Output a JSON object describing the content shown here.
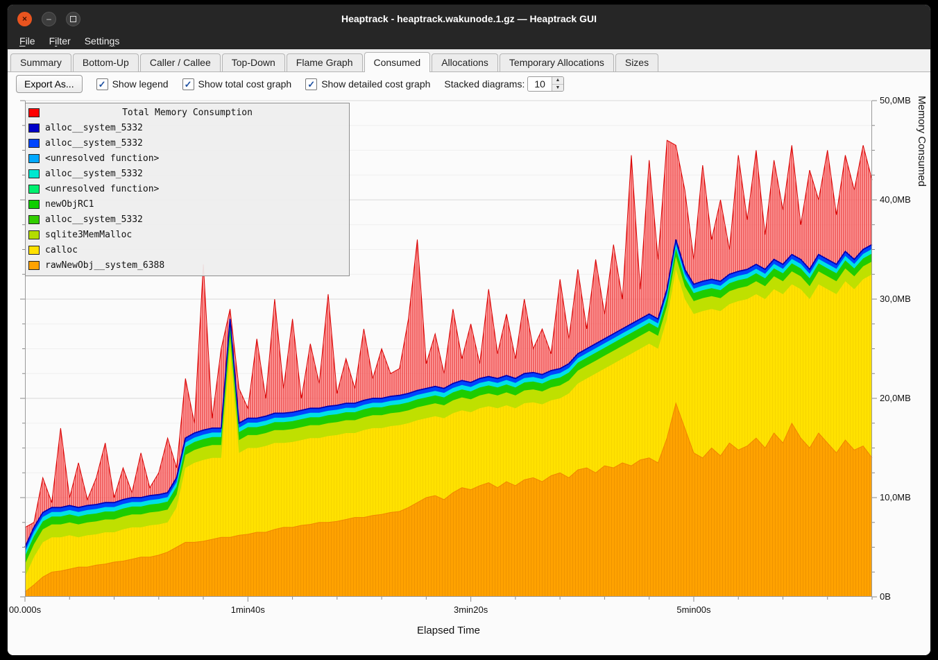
{
  "window": {
    "title": "Heaptrack - heaptrack.wakunode.1.gz — Heaptrack GUI",
    "controls": {
      "close": "×",
      "minimize": "–",
      "maximize": "□"
    }
  },
  "menubar": {
    "items": [
      {
        "label": "File",
        "mnemonic": 0
      },
      {
        "label": "Filter",
        "mnemonic": 1
      },
      {
        "label": "Settings",
        "mnemonic": 6
      }
    ]
  },
  "tabs": {
    "items": [
      "Summary",
      "Bottom-Up",
      "Caller / Callee",
      "Top-Down",
      "Flame Graph",
      "Consumed",
      "Allocations",
      "Temporary Allocations",
      "Sizes"
    ],
    "active": "Consumed"
  },
  "toolbar": {
    "export_label": "Export As...",
    "checkboxes": [
      {
        "label": "Show legend",
        "checked": true
      },
      {
        "label": "Show total cost graph",
        "checked": true
      },
      {
        "label": "Show detailed cost graph",
        "checked": true
      }
    ],
    "stacked_label": "Stacked diagrams:",
    "stacked_value": "10"
  },
  "chart_data": {
    "type": "area",
    "title": "Total Memory Consumption",
    "xlabel": "Elapsed Time",
    "ylabel": "Memory Consumed",
    "units": "MB",
    "ylim": [
      0,
      50
    ],
    "x_max": 380,
    "x_step_seconds": 4,
    "yticks": [
      {
        "label": "0B",
        "value": 0
      },
      {
        "label": "10,0MB",
        "value": 10
      },
      {
        "label": "20,0MB",
        "value": 20
      },
      {
        "label": "30,0MB",
        "value": 30
      },
      {
        "label": "40,0MB",
        "value": 40
      },
      {
        "label": "50,0MB",
        "value": 50
      }
    ],
    "xticks": [
      {
        "label": "00.000s",
        "value": 0
      },
      {
        "label": "1min40s",
        "value": 100
      },
      {
        "label": "3min20s",
        "value": 200
      },
      {
        "label": "5min00s",
        "value": 300
      }
    ],
    "legend": {
      "title": "Total Memory Consumption",
      "title_color": "#ff0000",
      "entries": [
        {
          "label": "alloc__system_5332",
          "color": "#0000c8"
        },
        {
          "label": "alloc__system_5332",
          "color": "#0045ff"
        },
        {
          "label": "<unresolved function>",
          "color": "#00a8ff"
        },
        {
          "label": "alloc__system_5332",
          "color": "#00e8d0"
        },
        {
          "label": "<unresolved function>",
          "color": "#00f070"
        },
        {
          "label": "newObjRC1",
          "color": "#0fce00"
        },
        {
          "label": "alloc__system_5332",
          "color": "#32cd00"
        },
        {
          "label": "sqlite3MemMalloc",
          "color": "#b4dc00"
        },
        {
          "label": "calloc",
          "color": "#ffe100"
        },
        {
          "label": "rawNewObj__system_6388",
          "color": "#ffa200"
        }
      ]
    },
    "colors": {
      "red_line": "#d80000",
      "red_fill": "#ff8a8a",
      "red_stripe": "#e62020",
      "blue": "#0045ff",
      "blue_dark": "#0000b4",
      "cyan": "#00e0e6",
      "green": "#1ecc00",
      "lgreen": "#bfe000",
      "yellow": "#ffe100",
      "orange": "#ffa200",
      "orange_line": "#f08600",
      "orange_stripe": "#ef9400"
    },
    "band_thickness_mb": {
      "sqlite3_band": 1.3,
      "green_band": 0.8,
      "cyan_band": 0.45,
      "blue_band": 0.45
    },
    "layers_cumulative_mb": {
      "orange_top": [
        0.5,
        1.2,
        2.0,
        2.5,
        2.6,
        2.8,
        3.0,
        3.0,
        3.2,
        3.3,
        3.5,
        3.6,
        3.8,
        4.0,
        4.0,
        4.2,
        4.5,
        5.0,
        5.5,
        5.5,
        5.6,
        5.8,
        6.0,
        6.0,
        6.2,
        6.3,
        6.5,
        6.5,
        6.8,
        7.0,
        7.0,
        7.2,
        7.3,
        7.5,
        7.5,
        7.6,
        7.8,
        8.0,
        8.0,
        8.2,
        8.3,
        8.5,
        8.6,
        9.0,
        9.5,
        10.0,
        10.2,
        9.8,
        10.5,
        11.0,
        10.8,
        11.2,
        11.5,
        11.0,
        11.6,
        11.2,
        11.8,
        12.0,
        11.6,
        12.2,
        12.5,
        12.0,
        12.8,
        13.0,
        12.5,
        13.2,
        13.0,
        13.5,
        13.2,
        13.8,
        14.0,
        13.5,
        16.0,
        19.5,
        17.0,
        14.5,
        14.0,
        15.0,
        14.2,
        15.5,
        14.8,
        15.2,
        16.0,
        15.0,
        16.5,
        15.5,
        17.5,
        16.0,
        15.0,
        16.5,
        15.5,
        14.5,
        15.8,
        14.8,
        15.2,
        14.0
      ],
      "yellow_top": [
        2.0,
        4.0,
        5.5,
        6.0,
        6.0,
        6.2,
        6.0,
        6.2,
        6.3,
        6.5,
        6.5,
        6.8,
        7.0,
        7.0,
        7.2,
        7.3,
        7.5,
        9.0,
        13.0,
        13.5,
        13.8,
        14.0,
        14.0,
        25.0,
        14.5,
        15.0,
        15.0,
        15.2,
        15.5,
        15.5,
        15.6,
        15.8,
        16.0,
        16.0,
        16.2,
        16.3,
        16.5,
        16.5,
        16.8,
        17.0,
        17.0,
        17.2,
        17.3,
        17.5,
        17.8,
        18.0,
        18.2,
        18.0,
        18.5,
        18.8,
        18.6,
        19.0,
        19.2,
        19.0,
        19.3,
        19.0,
        19.5,
        19.6,
        19.4,
        19.8,
        20.0,
        20.5,
        21.5,
        22.0,
        22.5,
        23.0,
        23.5,
        24.0,
        24.5,
        25.0,
        25.5,
        25.0,
        28.0,
        33.0,
        30.0,
        28.5,
        28.8,
        29.0,
        28.8,
        29.5,
        29.8,
        30.0,
        30.5,
        30.0,
        31.0,
        30.5,
        31.5,
        31.0,
        30.0,
        31.5,
        31.0,
        30.5,
        31.8,
        31.0,
        32.0,
        32.5
      ],
      "total": [
        7.0,
        7.5,
        12.0,
        9.5,
        17.0,
        10.0,
        13.5,
        9.8,
        12.0,
        15.5,
        10.0,
        13.0,
        10.5,
        14.5,
        11.0,
        12.5,
        16.0,
        13.0,
        22.0,
        17.5,
        33.5,
        18.0,
        25.0,
        29.0,
        21.0,
        19.0,
        26.0,
        20.0,
        30.0,
        21.0,
        28.0,
        20.0,
        25.5,
        21.5,
        30.5,
        20.5,
        24.0,
        21.0,
        27.0,
        22.0,
        25.0,
        22.5,
        23.0,
        28.0,
        36.0,
        23.5,
        26.5,
        22.5,
        29.0,
        24.0,
        27.5,
        23.5,
        31.0,
        24.5,
        28.5,
        24.0,
        30.0,
        25.0,
        27.0,
        24.5,
        32.0,
        26.0,
        33.0,
        27.0,
        34.0,
        28.5,
        35.5,
        30.0,
        44.5,
        31.0,
        44.0,
        34.0,
        46.0,
        45.5,
        41.0,
        34.0,
        43.5,
        36.0,
        40.0,
        35.0,
        44.5,
        38.0,
        45.0,
        36.5,
        44.0,
        39.0,
        45.5,
        37.5,
        43.0,
        40.0,
        45.0,
        38.5,
        44.5,
        41.0,
        45.5,
        42.0
      ]
    }
  }
}
